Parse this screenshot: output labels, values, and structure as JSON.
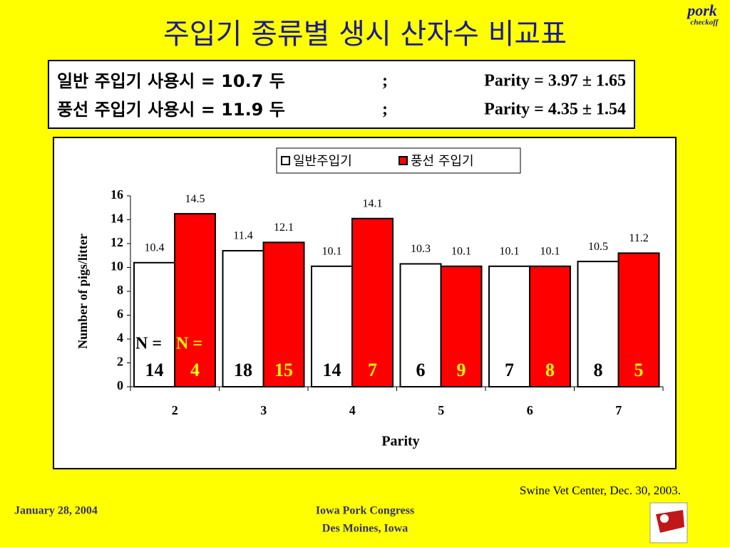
{
  "slide": {
    "title": "주입기 종류별 생시 산자수 비교표",
    "summary": [
      [
        "일반 주입기 사용시 = 10.7 두",
        ";",
        "Parity = 3.97 ± 1.65"
      ],
      [
        "풍선 주입기 사용시 = 11.9 두",
        ";",
        "Parity = 4.35 ± 1.54"
      ]
    ],
    "source": "Swine Vet Center, Dec. 30, 2003.",
    "footer_date": "January 28, 2004",
    "footer_event": [
      "Iowa Pork Congress",
      "Des Moines, Iowa"
    ],
    "logo": [
      "pork",
      "checkoff"
    ]
  },
  "chart_data": {
    "type": "bar",
    "categories": [
      "2",
      "3",
      "4",
      "5",
      "6",
      "7"
    ],
    "series": [
      {
        "name": "일반주입기",
        "color": "#ffffff",
        "values": [
          10.4,
          11.4,
          10.1,
          10.3,
          10.1,
          10.5
        ],
        "n_label": "N =",
        "n": [
          14,
          18,
          14,
          6,
          7,
          8
        ],
        "n_color": "#000000"
      },
      {
        "name": "풍선 주입기",
        "color": "#ff0000",
        "values": [
          14.5,
          12.1,
          14.1,
          10.1,
          10.1,
          11.2
        ],
        "n_label": "N =",
        "n": [
          4,
          15,
          7,
          9,
          8,
          5
        ],
        "n_color": "#ffff00"
      }
    ],
    "ylim": [
      0,
      16
    ],
    "yticks": [
      0,
      2,
      4,
      6,
      8,
      10,
      12,
      14,
      16
    ],
    "ylabel": "Number of pigs/litter",
    "xlabel": "Parity",
    "legend": "top"
  }
}
